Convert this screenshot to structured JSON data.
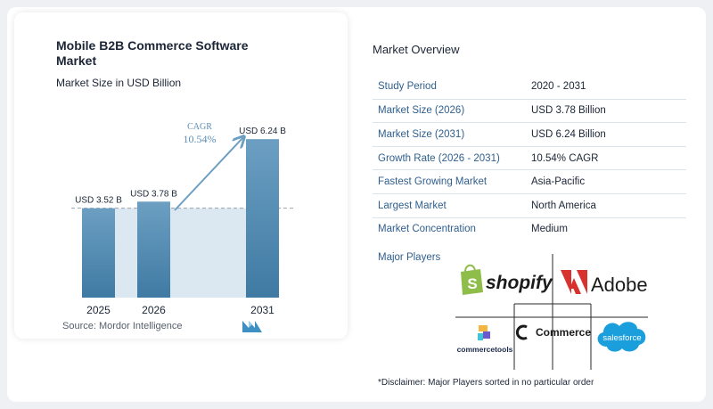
{
  "chart_data": {
    "type": "bar",
    "title": "Mobile B2B Commerce Software Market",
    "subtitle": "Market Size in USD Billion",
    "categories": [
      "2025",
      "2026",
      "2031"
    ],
    "values": [
      3.52,
      3.78,
      6.24
    ],
    "value_labels": [
      "USD 3.52 B",
      "USD 3.78 B",
      "USD 6.24 B"
    ],
    "ylim": [
      0,
      6.5
    ],
    "grid": false,
    "cagr_label": "CAGR",
    "cagr_value": "10.54%",
    "colors": {
      "bar_top": "#6c9fc2",
      "bar_bottom": "#3f7aa3",
      "band": "#dbe7f1",
      "arrow": "#6c9fc2"
    }
  },
  "source": "Source:  Mordor Intelligence",
  "overview": {
    "title": "Market Overview",
    "rows": [
      {
        "label": "Study Period",
        "value": "2020 - 2031"
      },
      {
        "label": "Market Size (2026)",
        "value": "USD 3.78 Billion"
      },
      {
        "label": "Market Size (2031)",
        "value": "USD 6.24 Billion"
      },
      {
        "label": "Growth Rate (2026 - 2031)",
        "value": "10.54% CAGR"
      },
      {
        "label": "Fastest Growing Market",
        "value": "Asia-Pacific"
      },
      {
        "label": "Largest Market",
        "value": "North America"
      },
      {
        "label": "Market Concentration",
        "value": "Medium"
      }
    ]
  },
  "players": {
    "title": "Major Players",
    "shopify": "shopify",
    "adobe": "Adobe",
    "commercetools": "commercetools",
    "commerce": "Commerce",
    "salesforce": "salesforce"
  },
  "disclaimer": "*Disclaimer: Major Players sorted in no particular order"
}
